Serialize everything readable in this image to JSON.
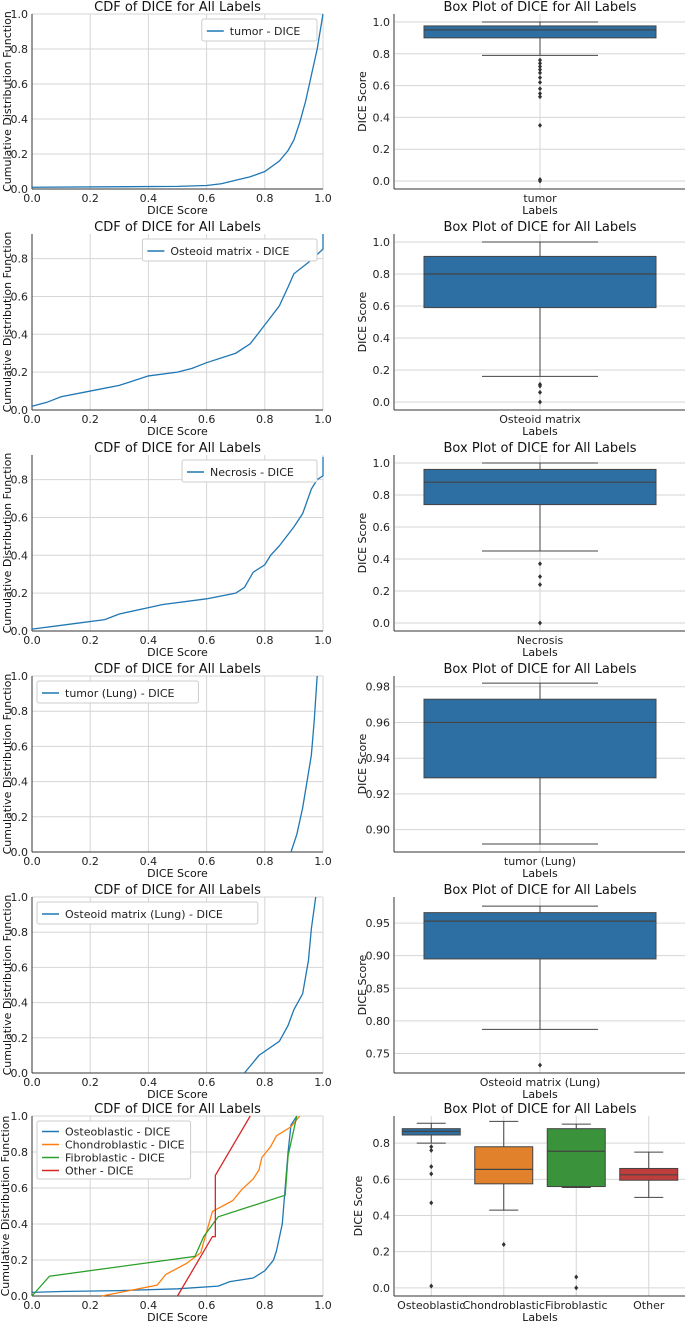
{
  "chart_data": [
    {
      "type": "line",
      "title": "CDF of DICE for All Labels",
      "xlabel": "DICE Score",
      "ylabel": "Cumulative Distribution Function",
      "xlim": [
        0,
        1
      ],
      "ylim": [
        0,
        1
      ],
      "xticks": [
        "0.0",
        "0.2",
        "0.4",
        "0.6",
        "0.8",
        "1.0"
      ],
      "yticks": [
        "0.0",
        "0.2",
        "0.4",
        "0.6",
        "0.8",
        "1.0"
      ],
      "legend": "top-right",
      "grid": true,
      "series": [
        {
          "name": "tumor - DICE",
          "color": "#1f77b4",
          "x": [
            0,
            0.5,
            0.6,
            0.65,
            0.7,
            0.75,
            0.8,
            0.85,
            0.88,
            0.9,
            0.92,
            0.94,
            0.96,
            0.98,
            0.99,
            1.0
          ],
          "y": [
            0.01,
            0.015,
            0.02,
            0.03,
            0.05,
            0.07,
            0.1,
            0.16,
            0.22,
            0.28,
            0.38,
            0.5,
            0.65,
            0.8,
            0.9,
            1.0
          ]
        }
      ]
    },
    {
      "type": "box",
      "title": "Box Plot of DICE for All Labels",
      "xlabel": "Labels",
      "ylabel": "DICE Score",
      "ylim": [
        -0.05,
        1.05
      ],
      "yticks": [
        0,
        0.2,
        0.4,
        0.6,
        0.8,
        1.0
      ],
      "ytick_labels": [
        "0.0",
        "0.2",
        "0.4",
        "0.6",
        "0.8",
        "1.0"
      ],
      "grid": true,
      "boxes": [
        {
          "label": "tumor",
          "color": "#2d6fa3",
          "q1": 0.9,
          "median": 0.95,
          "q3": 0.975,
          "whisker_low": 0.79,
          "whisker_high": 1.0,
          "outliers": [
            0.76,
            0.74,
            0.72,
            0.7,
            0.68,
            0.65,
            0.62,
            0.58,
            0.55,
            0.53,
            0.35,
            0.01,
            0.0
          ]
        }
      ]
    },
    {
      "type": "line",
      "title": "CDF of DICE for All Labels",
      "xlabel": "DICE Score",
      "ylabel": "Cumulative Distribution Function",
      "xlim": [
        0,
        1
      ],
      "ylim": [
        0,
        0.93
      ],
      "xticks": [
        "0.0",
        "0.2",
        "0.4",
        "0.6",
        "0.8",
        "1.0"
      ],
      "yticks": [
        "0.0",
        "0.2",
        "0.4",
        "0.6",
        "0.8"
      ],
      "legend": "top-right",
      "grid": true,
      "series": [
        {
          "name": "Osteoid matrix - DICE",
          "color": "#1f77b4",
          "x": [
            0,
            0.05,
            0.1,
            0.2,
            0.3,
            0.4,
            0.5,
            0.55,
            0.6,
            0.7,
            0.75,
            0.8,
            0.85,
            0.88,
            0.9,
            0.95,
            1.0,
            1.0
          ],
          "y": [
            0.02,
            0.04,
            0.07,
            0.1,
            0.13,
            0.18,
            0.2,
            0.22,
            0.25,
            0.3,
            0.35,
            0.45,
            0.55,
            0.65,
            0.72,
            0.78,
            0.85,
            0.93
          ]
        }
      ]
    },
    {
      "type": "box",
      "title": "Box Plot of DICE for All Labels",
      "xlabel": "Labels",
      "ylabel": "DICE Score",
      "ylim": [
        -0.05,
        1.05
      ],
      "yticks": [
        0,
        0.2,
        0.4,
        0.6,
        0.8,
        1.0
      ],
      "ytick_labels": [
        "0.0",
        "0.2",
        "0.4",
        "0.6",
        "0.8",
        "1.0"
      ],
      "grid": true,
      "boxes": [
        {
          "label": "Osteoid matrix",
          "color": "#2d6fa3",
          "q1": 0.59,
          "median": 0.8,
          "q3": 0.91,
          "whisker_low": 0.16,
          "whisker_high": 1.0,
          "outliers": [
            0.11,
            0.1,
            0.06,
            0.0
          ]
        }
      ]
    },
    {
      "type": "line",
      "title": "CDF of DICE for All Labels",
      "xlabel": "DICE Score",
      "ylabel": "Cumulative Distribution Function",
      "xlim": [
        0,
        1
      ],
      "ylim": [
        0,
        0.93
      ],
      "xticks": [
        "0.0",
        "0.2",
        "0.4",
        "0.6",
        "0.8",
        "1.0"
      ],
      "yticks": [
        "0.0",
        "0.2",
        "0.4",
        "0.6",
        "0.8"
      ],
      "legend": "top-right",
      "grid": true,
      "series": [
        {
          "name": "Necrosis - DICE",
          "color": "#1f77b4",
          "x": [
            0,
            0.15,
            0.25,
            0.3,
            0.45,
            0.6,
            0.7,
            0.73,
            0.76,
            0.8,
            0.82,
            0.85,
            0.9,
            0.93,
            0.96,
            0.98,
            1.0,
            1.0
          ],
          "y": [
            0.01,
            0.04,
            0.06,
            0.09,
            0.14,
            0.17,
            0.2,
            0.23,
            0.31,
            0.35,
            0.4,
            0.45,
            0.55,
            0.62,
            0.75,
            0.8,
            0.82,
            0.92
          ]
        }
      ]
    },
    {
      "type": "box",
      "title": "Box Plot of DICE for All Labels",
      "xlabel": "Labels",
      "ylabel": "DICE Score",
      "ylim": [
        -0.05,
        1.05
      ],
      "yticks": [
        0,
        0.2,
        0.4,
        0.6,
        0.8,
        1.0
      ],
      "ytick_labels": [
        "0.0",
        "0.2",
        "0.4",
        "0.6",
        "0.8",
        "1.0"
      ],
      "grid": true,
      "boxes": [
        {
          "label": "Necrosis",
          "color": "#2d6fa3",
          "q1": 0.74,
          "median": 0.88,
          "q3": 0.96,
          "whisker_low": 0.45,
          "whisker_high": 1.0,
          "outliers": [
            0.37,
            0.29,
            0.24,
            0.0
          ]
        }
      ]
    },
    {
      "type": "line",
      "title": "CDF of DICE for All Labels",
      "xlabel": "DICE Score",
      "ylabel": "Cumulative Distribution Function",
      "xlim": [
        0,
        1
      ],
      "ylim": [
        0,
        1
      ],
      "xticks": [
        "0.0",
        "0.2",
        "0.4",
        "0.6",
        "0.8",
        "1.0"
      ],
      "yticks": [
        "0.0",
        "0.2",
        "0.4",
        "0.6",
        "0.8",
        "1.0"
      ],
      "legend": "top-left",
      "grid": true,
      "series": [
        {
          "name": "tumor (Lung) - DICE",
          "color": "#1f77b4",
          "x": [
            0.89,
            0.91,
            0.93,
            0.96,
            0.97,
            0.98
          ],
          "y": [
            0,
            0.1,
            0.25,
            0.55,
            0.75,
            1.0
          ]
        }
      ]
    },
    {
      "type": "box",
      "title": "Box Plot of DICE for All Labels",
      "xlabel": "Labels",
      "ylabel": "DICE Score",
      "ylim": [
        0.8875,
        0.986
      ],
      "yticks": [
        0.9,
        0.92,
        0.94,
        0.96,
        0.98
      ],
      "ytick_labels": [
        "0.90",
        "0.92",
        "0.94",
        "0.96",
        "0.98"
      ],
      "grid": true,
      "boxes": [
        {
          "label": "tumor (Lung)",
          "color": "#2d6fa3",
          "q1": 0.929,
          "median": 0.96,
          "q3": 0.973,
          "whisker_low": 0.892,
          "whisker_high": 0.982,
          "outliers": []
        }
      ]
    },
    {
      "type": "line",
      "title": "CDF of DICE for All Labels",
      "xlabel": "DICE Score",
      "ylabel": "Cumulative Distribution Function",
      "xlim": [
        0,
        1
      ],
      "ylim": [
        0,
        1
      ],
      "xticks": [
        "0.0",
        "0.2",
        "0.4",
        "0.6",
        "0.8",
        "1.0"
      ],
      "yticks": [
        "0.0",
        "0.2",
        "0.4",
        "0.6",
        "0.8",
        "1.0"
      ],
      "legend": "top-left",
      "grid": true,
      "series": [
        {
          "name": "Osteoid matrix (Lung) - DICE",
          "color": "#1f77b4",
          "x": [
            0.73,
            0.78,
            0.85,
            0.88,
            0.9,
            0.93,
            0.95,
            0.96,
            0.975
          ],
          "y": [
            0,
            0.1,
            0.18,
            0.27,
            0.36,
            0.45,
            0.64,
            0.82,
            1.0
          ]
        }
      ]
    },
    {
      "type": "box",
      "title": "Box Plot of DICE for All Labels",
      "xlabel": "Labels",
      "ylabel": "DICE Score",
      "ylim": [
        0.72,
        0.99
      ],
      "yticks": [
        0.75,
        0.8,
        0.85,
        0.9,
        0.95
      ],
      "ytick_labels": [
        "0.75",
        "0.80",
        "0.85",
        "0.90",
        "0.95"
      ],
      "grid": true,
      "boxes": [
        {
          "label": "Osteoid matrix (Lung)",
          "color": "#2d6fa3",
          "q1": 0.895,
          "median": 0.953,
          "q3": 0.966,
          "whisker_low": 0.787,
          "whisker_high": 0.976,
          "outliers": [
            0.732
          ]
        }
      ]
    },
    {
      "type": "line",
      "title": "CDF of DICE for All Labels",
      "xlabel": "DICE Score",
      "ylabel": "Cumulative Distribution Function",
      "xlim": [
        0,
        1
      ],
      "ylim": [
        0,
        1
      ],
      "xticks": [
        "0.0",
        "0.2",
        "0.4",
        "0.6",
        "0.8",
        "1.0"
      ],
      "yticks": [
        "0.0",
        "0.2",
        "0.4",
        "0.6",
        "0.8",
        "1.0"
      ],
      "legend": "top-left",
      "grid": true,
      "series": [
        {
          "name": "Osteoblastic - DICE",
          "color": "#1f77b4",
          "x": [
            0,
            0.1,
            0.3,
            0.5,
            0.64,
            0.68,
            0.76,
            0.8,
            0.83,
            0.84,
            0.86,
            0.87,
            0.88,
            0.89,
            0.91
          ],
          "y": [
            0.02,
            0.025,
            0.03,
            0.04,
            0.055,
            0.08,
            0.1,
            0.14,
            0.2,
            0.25,
            0.4,
            0.6,
            0.8,
            0.95,
            1.0
          ]
        },
        {
          "name": "Chondroblastic - DICE",
          "color": "#ff7f0e",
          "x": [
            0.24,
            0.43,
            0.46,
            0.53,
            0.58,
            0.59,
            0.62,
            0.69,
            0.72,
            0.76,
            0.78,
            0.79,
            0.82,
            0.84,
            0.89,
            0.92
          ],
          "y": [
            0,
            0.06,
            0.12,
            0.18,
            0.24,
            0.3,
            0.47,
            0.53,
            0.59,
            0.65,
            0.7,
            0.77,
            0.83,
            0.89,
            0.94,
            1.0
          ]
        },
        {
          "name": "Fibroblastic - DICE",
          "color": "#2ca02c",
          "x": [
            0,
            0.06,
            0.56,
            0.59,
            0.64,
            0.87,
            0.88,
            0.91
          ],
          "y": [
            0,
            0.11,
            0.22,
            0.33,
            0.44,
            0.56,
            0.78,
            1.0
          ]
        },
        {
          "name": "Other - DICE",
          "color": "#d62728",
          "x": [
            0.5,
            0.62,
            0.63,
            0.63,
            0.75
          ],
          "y": [
            0,
            0.33,
            0.33,
            0.67,
            1.0
          ]
        }
      ]
    },
    {
      "type": "box",
      "title": "Box Plot of DICE for All Labels",
      "xlabel": "Labels",
      "ylabel": "DICE Score",
      "ylim": [
        -0.045,
        0.95
      ],
      "yticks": [
        0,
        0.2,
        0.4,
        0.6,
        0.8
      ],
      "ytick_labels": [
        "0.0",
        "0.2",
        "0.4",
        "0.6",
        "0.8"
      ],
      "grid": true,
      "boxes": [
        {
          "label": "Osteoblastic",
          "color": "#2d6fa3",
          "q1": 0.845,
          "median": 0.865,
          "q3": 0.88,
          "whisker_low": 0.8,
          "whisker_high": 0.91,
          "outliers": [
            0.78,
            0.76,
            0.67,
            0.63,
            0.47,
            0.01
          ]
        },
        {
          "label": "Chondroblastic",
          "color": "#e1812c",
          "q1": 0.575,
          "median": 0.655,
          "q3": 0.78,
          "whisker_low": 0.43,
          "whisker_high": 0.92,
          "outliers": [
            0.24
          ]
        },
        {
          "label": "Fibroblastic",
          "color": "#3a923a",
          "q1": 0.56,
          "median": 0.755,
          "q3": 0.88,
          "whisker_low": 0.555,
          "whisker_high": 0.905,
          "outliers": [
            0.06,
            0.0
          ]
        },
        {
          "label": "Other",
          "color": "#c03d3e",
          "q1": 0.595,
          "median": 0.625,
          "q3": 0.66,
          "whisker_low": 0.5,
          "whisker_high": 0.75,
          "outliers": []
        }
      ]
    }
  ]
}
